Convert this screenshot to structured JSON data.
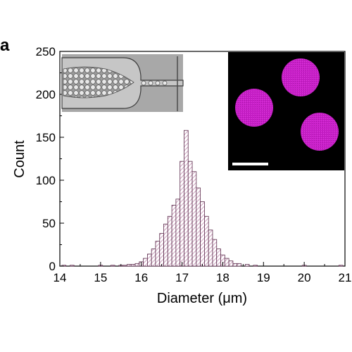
{
  "panel_label": "a",
  "colors": {
    "bar_stroke": "#5a2a4a",
    "bar_hatch": "#c28bb0",
    "bar_fill": "#ffffff",
    "magenta_droplet": "#c81fc8",
    "inset_background": "#000000",
    "scale_bar": "#ffffff"
  },
  "insets": [
    {
      "name": "microfluidic-channel-micrograph",
      "depicts": "grayscale micrograph of droplets packed in a microfluidic channel"
    },
    {
      "name": "fluorescence-droplets-micrograph",
      "depicts": "three magenta fluorescent droplets on black background with white scale bar"
    }
  ],
  "chart_data": {
    "type": "bar",
    "xlabel": "Diameter (μm)",
    "ylabel": "Count",
    "xlim": [
      14,
      21
    ],
    "ylim": [
      0,
      250
    ],
    "x_ticks": [
      14,
      15,
      16,
      17,
      18,
      19,
      20,
      21
    ],
    "y_ticks": [
      0,
      50,
      100,
      150,
      200,
      250
    ],
    "grid": false,
    "bin_width": 0.1,
    "bins": [
      {
        "x": 14.1,
        "y": 1
      },
      {
        "x": 14.3,
        "y": 1
      },
      {
        "x": 15.0,
        "y": 1
      },
      {
        "x": 15.3,
        "y": 1
      },
      {
        "x": 15.5,
        "y": 1
      },
      {
        "x": 15.6,
        "y": 1
      },
      {
        "x": 15.7,
        "y": 2
      },
      {
        "x": 15.8,
        "y": 2
      },
      {
        "x": 15.9,
        "y": 3
      },
      {
        "x": 16.0,
        "y": 5
      },
      {
        "x": 16.1,
        "y": 9
      },
      {
        "x": 16.2,
        "y": 14
      },
      {
        "x": 16.3,
        "y": 20
      },
      {
        "x": 16.4,
        "y": 29
      },
      {
        "x": 16.5,
        "y": 38
      },
      {
        "x": 16.6,
        "y": 49
      },
      {
        "x": 16.7,
        "y": 58
      },
      {
        "x": 16.8,
        "y": 71
      },
      {
        "x": 16.9,
        "y": 78
      },
      {
        "x": 17.0,
        "y": 122
      },
      {
        "x": 17.1,
        "y": 158
      },
      {
        "x": 17.2,
        "y": 122
      },
      {
        "x": 17.3,
        "y": 110
      },
      {
        "x": 17.4,
        "y": 91
      },
      {
        "x": 17.5,
        "y": 75
      },
      {
        "x": 17.6,
        "y": 58
      },
      {
        "x": 17.7,
        "y": 42
      },
      {
        "x": 17.8,
        "y": 31
      },
      {
        "x": 17.9,
        "y": 20
      },
      {
        "x": 18.0,
        "y": 13
      },
      {
        "x": 18.1,
        "y": 9
      },
      {
        "x": 18.2,
        "y": 6
      },
      {
        "x": 18.3,
        "y": 3
      },
      {
        "x": 18.4,
        "y": 3
      },
      {
        "x": 18.6,
        "y": 2
      },
      {
        "x": 18.8,
        "y": 1
      },
      {
        "x": 20.0,
        "y": 1
      },
      {
        "x": 20.9,
        "y": 1
      }
    ]
  }
}
